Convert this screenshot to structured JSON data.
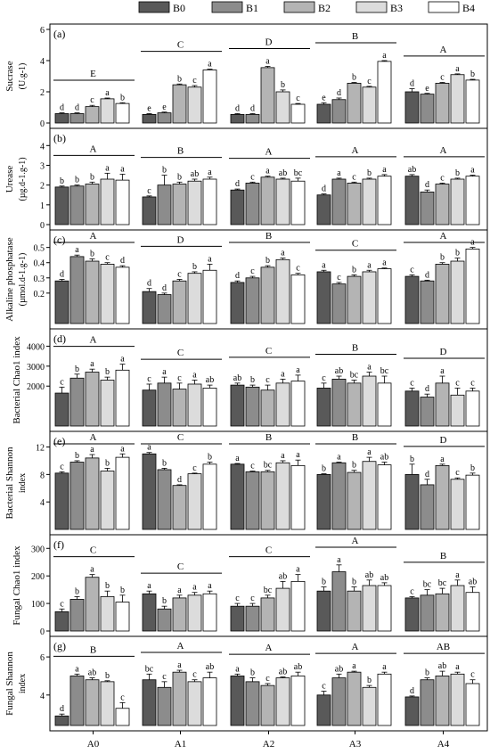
{
  "legend": {
    "items": [
      {
        "label": "B0",
        "color": "#595959"
      },
      {
        "label": "B1",
        "color": "#8c8c8c"
      },
      {
        "label": "B2",
        "color": "#b4b4b4"
      },
      {
        "label": "B3",
        "color": "#dcdcdc"
      },
      {
        "label": "B4",
        "color": "#ffffff"
      }
    ]
  },
  "x_groups": [
    "A0",
    "A1",
    "A2",
    "A3",
    "A4"
  ],
  "chart_data": [
    {
      "type": "bar",
      "panel": "(a)",
      "ylabel": "Sucrase",
      "unit": "(U.g-1)",
      "ylim": [
        0,
        6
      ],
      "yticks": [
        0,
        2,
        4,
        6
      ],
      "group_letters": [
        "E",
        "C",
        "D",
        "B",
        "A"
      ],
      "values": [
        [
          0.6,
          0.6,
          1.05,
          1.55,
          1.25
        ],
        [
          0.55,
          0.65,
          2.45,
          2.3,
          3.4
        ],
        [
          0.55,
          0.55,
          3.55,
          2.0,
          1.2
        ],
        [
          1.2,
          1.5,
          2.55,
          2.3,
          3.95
        ],
        [
          2.0,
          1.85,
          2.55,
          3.1,
          2.75
        ]
      ],
      "errors": [
        [
          0.05,
          0.05,
          0.08,
          0.05,
          0.05
        ],
        [
          0.05,
          0.05,
          0.05,
          0.1,
          0.05
        ],
        [
          0.05,
          0.05,
          0.08,
          0.12,
          0.05
        ],
        [
          0.1,
          0.1,
          0.05,
          0.05,
          0.05
        ],
        [
          0.2,
          0.05,
          0.05,
          0.05,
          0.05
        ]
      ],
      "letters": [
        [
          "d",
          "d",
          "c",
          "a",
          "b"
        ],
        [
          "e",
          "e",
          "b",
          "c",
          "a"
        ],
        [
          "d",
          "d",
          "a",
          "b",
          "c"
        ],
        [
          "e",
          "d",
          "b",
          "c",
          "a"
        ],
        [
          "d",
          "e",
          "c",
          "a",
          "b"
        ]
      ]
    },
    {
      "type": "bar",
      "panel": "(b)",
      "ylabel": "Urease",
      "unit": "(µg.d-1.g-1)",
      "ylim": [
        0,
        4.6
      ],
      "yticks": [
        0,
        1,
        2,
        3,
        4
      ],
      "group_letters": [
        "A",
        "B",
        "A",
        "A",
        "A"
      ],
      "values": [
        [
          1.9,
          1.95,
          2.05,
          2.3,
          2.25
        ],
        [
          1.4,
          2.0,
          2.05,
          2.2,
          2.3
        ],
        [
          1.75,
          2.1,
          2.4,
          2.3,
          2.2
        ],
        [
          1.5,
          2.3,
          2.1,
          2.3,
          2.45
        ],
        [
          2.45,
          1.65,
          2.05,
          2.3,
          2.45
        ]
      ],
      "errors": [
        [
          0.05,
          0.05,
          0.1,
          0.3,
          0.3
        ],
        [
          0.05,
          0.5,
          0.1,
          0.1,
          0.1
        ],
        [
          0.05,
          0.05,
          0.05,
          0.05,
          0.15
        ],
        [
          0.05,
          0.05,
          0.05,
          0.05,
          0.08
        ],
        [
          0.08,
          0.1,
          0.05,
          0.05,
          0.05
        ]
      ],
      "letters": [
        [
          "b",
          "b",
          "b",
          "a",
          "a"
        ],
        [
          "c",
          "b",
          "b",
          "ab",
          "a"
        ],
        [
          "d",
          "c",
          "a",
          "ab",
          "bc"
        ],
        [
          "d",
          "a",
          "c",
          "b",
          "a"
        ],
        [
          "ab",
          "d",
          "c",
          "b",
          "a"
        ]
      ]
    },
    {
      "type": "bar",
      "panel": "(c)",
      "ylabel": "Alkaline phosphatase",
      "unit": "(µmol.d-1.g-1)",
      "ylim": [
        0,
        0.58
      ],
      "yticks": [
        0.2,
        0.3,
        0.4,
        0.5
      ],
      "group_letters": [
        "A",
        "D",
        "B",
        "C",
        "A"
      ],
      "values": [
        [
          0.28,
          0.44,
          0.41,
          0.39,
          0.37
        ],
        [
          0.21,
          0.19,
          0.28,
          0.33,
          0.35
        ],
        [
          0.27,
          0.3,
          0.37,
          0.42,
          0.32
        ],
        [
          0.34,
          0.26,
          0.31,
          0.34,
          0.36
        ],
        [
          0.31,
          0.28,
          0.39,
          0.41,
          0.49
        ]
      ],
      "errors": [
        [
          0.01,
          0.01,
          0.015,
          0.01,
          0.01
        ],
        [
          0.02,
          0.01,
          0.01,
          0.01,
          0.04
        ],
        [
          0.01,
          0.01,
          0.01,
          0.01,
          0.01
        ],
        [
          0.01,
          0.01,
          0.01,
          0.01,
          0.005
        ],
        [
          0.01,
          0.005,
          0.01,
          0.02,
          0.01
        ]
      ],
      "letters": [
        [
          "d",
          "a",
          "b",
          "c",
          "d"
        ],
        [
          "d",
          "d",
          "c",
          "b",
          "a"
        ],
        [
          "d",
          "c",
          "b",
          "a",
          "c"
        ],
        [
          "a",
          "c",
          "b",
          "a",
          "a"
        ],
        [
          "c",
          "d",
          "b",
          "b",
          "a"
        ]
      ]
    },
    {
      "type": "bar",
      "panel": "(d)",
      "ylabel": "Bacterial Chao1 index",
      "unit": "",
      "ylim": [
        0,
        4600
      ],
      "yticks": [
        2000,
        3000,
        4000
      ],
      "group_letters": [
        "A",
        "C",
        "C",
        "B",
        "D"
      ],
      "values": [
        [
          1650,
          2400,
          2700,
          2300,
          2800
        ],
        [
          1800,
          2150,
          1850,
          2100,
          1900
        ],
        [
          2050,
          1950,
          1800,
          2150,
          2250
        ],
        [
          1900,
          2350,
          2150,
          2500,
          2150
        ],
        [
          1750,
          1450,
          2150,
          1550,
          1750
        ]
      ],
      "errors": [
        [
          300,
          200,
          150,
          150,
          300
        ],
        [
          300,
          300,
          300,
          200,
          150
        ],
        [
          100,
          100,
          250,
          200,
          300
        ],
        [
          250,
          150,
          150,
          200,
          350
        ],
        [
          150,
          150,
          350,
          350,
          150
        ]
      ],
      "letters": [
        [
          "c",
          "b",
          "a",
          "b",
          "a"
        ],
        [
          "c",
          "a",
          "c",
          "a",
          "ab"
        ],
        [
          "ab",
          "b",
          "c",
          "a",
          "a"
        ],
        [
          "c",
          "ab",
          "bc",
          "a",
          "bc"
        ],
        [
          "c",
          "d",
          "a",
          "c",
          "c"
        ]
      ]
    },
    {
      "type": "bar",
      "panel": "(e)",
      "ylabel": "Bacterial Shannon",
      "unit": "index",
      "ylim": [
        0,
        13.5
      ],
      "yticks": [
        4,
        8,
        12
      ],
      "group_letters": [
        "A",
        "C",
        "B",
        "B",
        "D"
      ],
      "values": [
        [
          8.2,
          9.8,
          10.4,
          8.5,
          10.5
        ],
        [
          11.0,
          8.7,
          6.4,
          8.1,
          9.5
        ],
        [
          9.5,
          8.4,
          8.4,
          9.7,
          9.3
        ],
        [
          8.0,
          9.7,
          8.3,
          9.9,
          9.4
        ],
        [
          8.0,
          6.5,
          9.3,
          7.3,
          7.9
        ]
      ],
      "errors": [
        [
          0.2,
          0.2,
          0.5,
          0.4,
          0.5
        ],
        [
          0.2,
          0.2,
          0.1,
          0.1,
          0.3
        ],
        [
          0.1,
          0.1,
          0.2,
          0.3,
          0.8
        ],
        [
          0.1,
          0.1,
          0.3,
          0.6,
          0.4
        ],
        [
          1.5,
          0.8,
          0.2,
          0.2,
          0.3
        ]
      ],
      "letters": [
        [
          "c",
          "b",
          "a",
          "b",
          "a"
        ],
        [
          "a",
          "b",
          "d",
          "c",
          "b"
        ],
        [
          "a",
          "c",
          "bc",
          "a",
          "a"
        ],
        [
          "b",
          "a",
          "b",
          "a",
          "ab"
        ],
        [
          "b",
          "d",
          "a",
          "c",
          "b"
        ]
      ]
    },
    {
      "type": "bar",
      "panel": "(f)",
      "ylabel": "Fungal Chao1 index",
      "unit": "",
      "ylim": [
        0,
        330
      ],
      "yticks": [
        0,
        100,
        200,
        300
      ],
      "group_letters": [
        "C",
        "C",
        "C",
        "A",
        "B"
      ],
      "values": [
        [
          70,
          115,
          195,
          125,
          105
        ],
        [
          135,
          80,
          120,
          130,
          135
        ],
        [
          90,
          90,
          120,
          155,
          180
        ],
        [
          145,
          215,
          145,
          165,
          165
        ],
        [
          120,
          130,
          135,
          165,
          140
        ]
      ],
      "errors": [
        [
          10,
          10,
          10,
          20,
          25
        ],
        [
          10,
          10,
          10,
          10,
          10
        ],
        [
          10,
          10,
          10,
          25,
          25
        ],
        [
          15,
          25,
          15,
          20,
          10
        ],
        [
          5,
          20,
          20,
          20,
          20
        ]
      ],
      "letters": [
        [
          "c",
          "b",
          "a",
          "b",
          "b"
        ],
        [
          "a",
          "b",
          "a",
          "a",
          "a"
        ],
        [
          "c",
          "c",
          "bc",
          "ab",
          "a"
        ],
        [
          "b",
          "a",
          "b",
          "ab",
          "ab"
        ],
        [
          "c",
          "bc",
          "bc",
          "a",
          "ab"
        ]
      ]
    },
    {
      "type": "bar",
      "panel": "(g)",
      "ylabel": "Fungal Shannon",
      "unit": "index",
      "ylim": [
        2.4,
        6.8
      ],
      "yticks": [
        4,
        6
      ],
      "group_letters": [
        "B",
        "A",
        "A",
        "A",
        "AB"
      ],
      "values": [
        [
          2.9,
          5.0,
          4.8,
          4.7,
          3.3
        ],
        [
          4.8,
          4.4,
          5.2,
          4.7,
          4.9
        ],
        [
          5.0,
          4.7,
          4.5,
          4.9,
          5.0
        ],
        [
          4.0,
          4.9,
          5.2,
          4.4,
          5.1
        ],
        [
          3.9,
          4.8,
          5.0,
          5.1,
          4.6
        ]
      ],
      "errors": [
        [
          0.1,
          0.1,
          0.1,
          0.05,
          0.3
        ],
        [
          0.3,
          0.3,
          0.1,
          0.1,
          0.3
        ],
        [
          0.1,
          0.2,
          0.1,
          0.05,
          0.2
        ],
        [
          0.2,
          0.2,
          0.05,
          0.1,
          0.1
        ],
        [
          0.05,
          0.1,
          0.25,
          0.1,
          0.2
        ]
      ],
      "letters": [
        [
          "d",
          "a",
          "ab",
          "b",
          "c"
        ],
        [
          "bc",
          "c",
          "a",
          "c",
          "ab"
        ],
        [
          "a",
          "b",
          "c",
          "ab",
          "ab"
        ],
        [
          "c",
          "ab",
          "a",
          "b",
          "a"
        ],
        [
          "d",
          "b",
          "ab",
          "a",
          "c"
        ]
      ]
    }
  ]
}
